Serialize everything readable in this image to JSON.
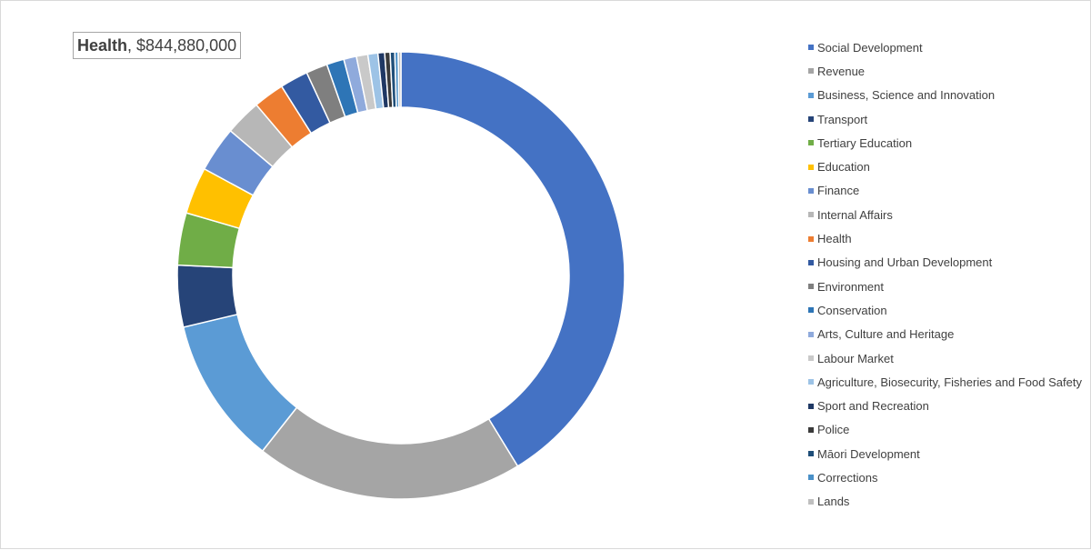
{
  "tooltip": {
    "label": "Health",
    "value": "$844,880,000"
  },
  "chart_data": {
    "type": "pie",
    "variant": "donut",
    "legend_position": "right",
    "categories": [
      "Social Development",
      "Revenue",
      "Business, Science and Innovation",
      "Transport",
      "Tertiary Education",
      "Education",
      "Finance",
      "Internal Affairs",
      "Health",
      "Housing and Urban Development",
      "Environment",
      "Conservation",
      "Arts, Culture and Heritage",
      "Labour Market",
      "Agriculture, Biosecurity, Fisheries and Food Safety",
      "Sport and Recreation",
      "Police",
      "Māori Development",
      "Corrections",
      "Lands"
    ],
    "values": [
      42.6,
      20.0,
      11.0,
      4.6,
      3.9,
      3.5,
      3.4,
      2.7,
      2.3,
      2.1,
      1.6,
      1.3,
      0.95,
      0.85,
      0.75,
      0.5,
      0.4,
      0.35,
      0.25,
      0.2
    ],
    "colors": [
      "#4472c4",
      "#a5a5a5",
      "#5b9bd5",
      "#264478",
      "#70ad47",
      "#ffc000",
      "#698ed0",
      "#b7b7b7",
      "#ed7d31",
      "#335aa1",
      "#7f7f7f",
      "#2e75b6",
      "#8faadc",
      "#c9c9c9",
      "#9dc3e6",
      "#1f3864",
      "#3a3a3a",
      "#1f4e79",
      "#4a90c8",
      "#bfbfbf"
    ]
  }
}
